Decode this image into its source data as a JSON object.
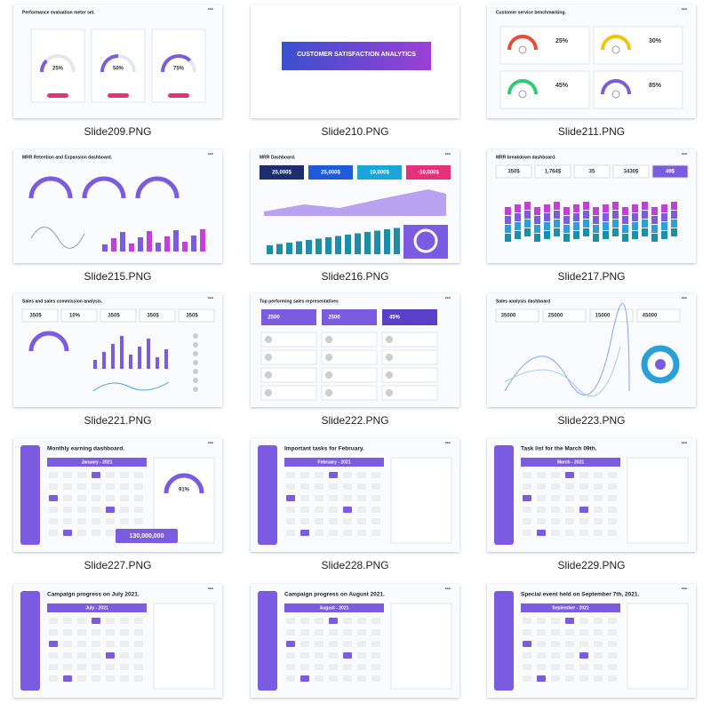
{
  "gallery": {
    "thumbnails": [
      {
        "title": "Performance evaluation meter set.",
        "labels": [
          "25%",
          "50%",
          "75%"
        ],
        "caption": "Slide209.PNG"
      },
      {
        "title": "CUSTOMER SATISFACTION ANALYTICS",
        "labels": [],
        "caption": "Slide210.PNG"
      },
      {
        "title": "Customer service benchmarking.",
        "labels": [
          "25%",
          "30%",
          "45%",
          "85%"
        ],
        "caption": "Slide211.PNG"
      },
      {
        "title": "MRR Retention and Expansion dashboard.",
        "labels": [],
        "caption": "Slide215.PNG"
      },
      {
        "title": "MRR Dashboard.",
        "labels": [
          "25,000$",
          "25,000$",
          "10,000$",
          "-10,000$"
        ],
        "caption": "Slide216.PNG"
      },
      {
        "title": "MRR breakdown dashboard.",
        "labels": [
          "350$",
          "1,764$",
          "35",
          "3430$",
          "49$"
        ],
        "caption": "Slide217.PNG"
      },
      {
        "title": "Sales and sales commission analysis.",
        "labels": [
          "350$",
          "10%",
          "350$",
          "350$",
          "350$"
        ],
        "caption": "Slide221.PNG"
      },
      {
        "title": "Top performing sales representatives",
        "labels": [
          "2500",
          "2500",
          "45%"
        ],
        "caption": "Slide222.PNG"
      },
      {
        "title": "Sales analysis dashboard",
        "labels": [
          "35000",
          "25000",
          "15000",
          "45000"
        ],
        "caption": "Slide223.PNG"
      },
      {
        "title": "Monthly earning dashboard.",
        "labels": [
          "January - 2021",
          "91%",
          "130,000,000"
        ],
        "caption": "Slide227.PNG"
      },
      {
        "title": "Important tasks for February.",
        "labels": [
          "February - 2021"
        ],
        "caption": "Slide228.PNG"
      },
      {
        "title": "Task list for the March 09th.",
        "labels": [
          "March - 2021"
        ],
        "caption": "Slide229.PNG"
      },
      {
        "title": "Campaign progress on July 2021.",
        "labels": [
          "July - 2021"
        ]
      },
      {
        "title": "Campaign progress on August 2021.",
        "labels": [
          "August - 2021"
        ]
      },
      {
        "title": "Special event held on September 7th, 2021.",
        "labels": [
          "September - 2021"
        ]
      }
    ]
  }
}
